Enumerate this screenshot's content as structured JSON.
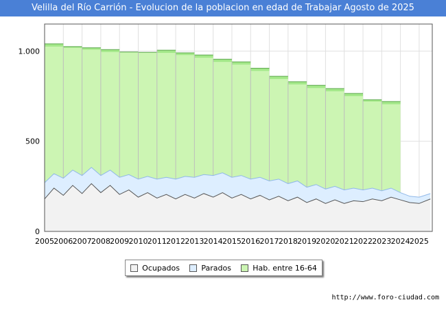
{
  "title": "Velilla del Río Carrión - Evolucion de la poblacion en edad de Trabajar Agosto de 2025",
  "source": "http://www.foro-ciudad.com",
  "colors": {
    "title_bg": "#4a80d6",
    "hab_fill": "#ccf5b3",
    "hab_fill_dark": "#a4e88a",
    "hab_line": "#5aa64a",
    "parados_fill": "#ddeeff",
    "parados_line": "#90b8e8",
    "ocupados_fill": "#f2f2f2",
    "ocupados_line": "#555555"
  },
  "chart_data": {
    "type": "area",
    "title": "Velilla del Río Carrión - Evolucion de la poblacion en edad de Trabajar Agosto de 2025",
    "xlabel": "",
    "ylabel": "",
    "xlim": [
      2005,
      2025.7
    ],
    "ylim": [
      0,
      1150
    ],
    "grid": true,
    "y_ticks": [
      0,
      500,
      1000
    ],
    "y_tick_labels": [
      "0",
      "500",
      "1.000"
    ],
    "x_tick_labels": [
      "2005",
      "2006",
      "2007",
      "2008",
      "2009",
      "2010",
      "2011",
      "2012",
      "2013",
      "2014",
      "2015",
      "2016",
      "2017",
      "2018",
      "2019",
      "2020",
      "2021",
      "2022",
      "2023",
      "2024",
      "2025"
    ],
    "legend": [
      "Ocupados",
      "Parados",
      "Hab. entre 16-64"
    ],
    "legend_position": "bottom-center",
    "series": [
      {
        "name": "Hab. entre 16-64",
        "x": [
          2005,
          2006,
          2007,
          2008,
          2009,
          2010,
          2011,
          2012,
          2013,
          2014,
          2015,
          2016,
          2017,
          2018,
          2019,
          2020,
          2021,
          2022,
          2023
        ],
        "values": [
          1040,
          1025,
          1018,
          1008,
          995,
          993,
          1005,
          990,
          978,
          955,
          940,
          905,
          860,
          830,
          810,
          792,
          765,
          730,
          720
        ]
      },
      {
        "name": "Parados",
        "x": [
          2005,
          2005.5,
          2006,
          2006.5,
          2007,
          2007.5,
          2008,
          2008.5,
          2009,
          2009.5,
          2010,
          2010.5,
          2011,
          2011.5,
          2012,
          2012.5,
          2013,
          2013.5,
          2014,
          2014.5,
          2015,
          2015.5,
          2016,
          2016.5,
          2017,
          2017.5,
          2018,
          2018.5,
          2019,
          2019.5,
          2020,
          2020.5,
          2021,
          2021.5,
          2022,
          2022.5,
          2023,
          2023.5,
          2024,
          2024.5,
          2025,
          2025.6
        ],
        "values": [
          90,
          80,
          95,
          85,
          100,
          90,
          95,
          85,
          95,
          85,
          100,
          90,
          105,
          95,
          110,
          100,
          115,
          105,
          120,
          110,
          115,
          105,
          110,
          100,
          105,
          95,
          95,
          90,
          85,
          80,
          80,
          75,
          75,
          70,
          65,
          60,
          55,
          50,
          40,
          35,
          35,
          30
        ]
      },
      {
        "name": "Ocupados",
        "x": [
          2005,
          2005.5,
          2006,
          2006.5,
          2007,
          2007.5,
          2008,
          2008.5,
          2009,
          2009.5,
          2010,
          2010.5,
          2011,
          2011.5,
          2012,
          2012.5,
          2013,
          2013.5,
          2014,
          2014.5,
          2015,
          2015.5,
          2016,
          2016.5,
          2017,
          2017.5,
          2018,
          2018.5,
          2019,
          2019.5,
          2020,
          2020.5,
          2021,
          2021.5,
          2022,
          2022.5,
          2023,
          2023.5,
          2024,
          2024.5,
          2025,
          2025.6
        ],
        "values": [
          180,
          240,
          200,
          255,
          210,
          265,
          215,
          255,
          205,
          230,
          190,
          215,
          185,
          205,
          180,
          205,
          185,
          210,
          190,
          215,
          185,
          205,
          180,
          200,
          175,
          195,
          170,
          190,
          160,
          180,
          155,
          175,
          155,
          170,
          165,
          180,
          170,
          190,
          175,
          160,
          155,
          180
        ]
      }
    ]
  }
}
